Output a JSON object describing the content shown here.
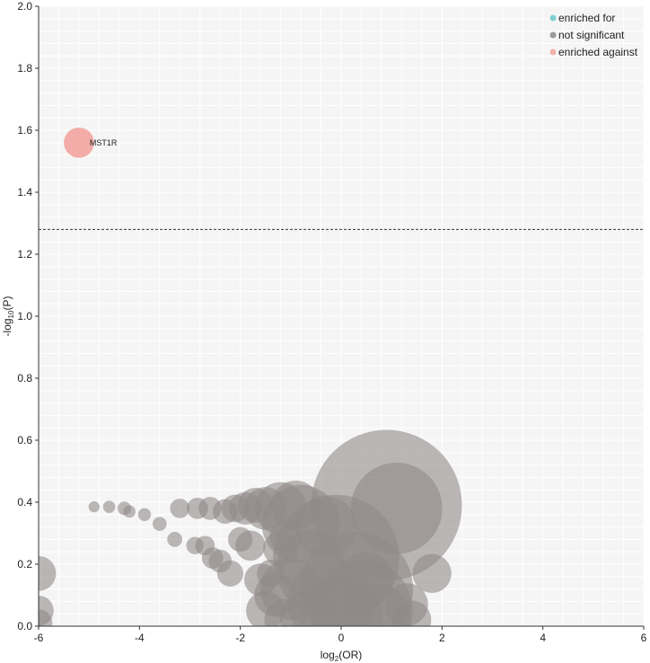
{
  "chart_data": {
    "type": "scatter",
    "title": "",
    "xlabel": {
      "base": "log",
      "sub": "2",
      "rest": "(OR)"
    },
    "ylabel": {
      "pre": "-log",
      "sub": "10",
      "rest": "(P)"
    },
    "xlim": [
      -6,
      6
    ],
    "ylim": [
      0,
      2
    ],
    "x_ticks": [
      -6,
      -4,
      -2,
      0,
      2,
      4,
      6
    ],
    "y_ticks": [
      0.0,
      0.2,
      0.4,
      0.6,
      0.8,
      1.0,
      1.2,
      1.4,
      1.6,
      1.8,
      2.0
    ],
    "x_tick_labels": [
      "-6",
      "-4",
      "-2",
      "0",
      "2",
      "4",
      "6"
    ],
    "y_tick_labels": [
      "0.0",
      "0.2",
      "0.4",
      "0.6",
      "0.8",
      "1.0",
      "1.2",
      "1.4",
      "1.6",
      "1.8",
      "2.0"
    ],
    "grid": true,
    "threshold_line": {
      "y": 1.28,
      "style": "dashed"
    },
    "legend": {
      "placement": "top-right",
      "entries": [
        {
          "label": "enriched for",
          "color": "#7fd0d3"
        },
        {
          "label": "not significant",
          "color": "#9e9a98"
        },
        {
          "label": "enriched against",
          "color": "#f2b3ad"
        }
      ]
    },
    "colors": {
      "enriched_for": "#7fd0d3",
      "not_significant": "#8f8b89",
      "enriched_against": "#f2a8a2",
      "background": "#f5f5f5",
      "grid": "#ffffff"
    },
    "annotations": [
      {
        "text": "MST1R",
        "x": -5.2,
        "y": 1.56
      }
    ],
    "points": [
      {
        "x": -5.2,
        "y": 1.56,
        "size": 0.06,
        "category": "enriched_against",
        "label": "MST1R"
      },
      {
        "x": 0.9,
        "y": 0.39,
        "size": 1.5,
        "category": "not_significant"
      },
      {
        "x": -0.1,
        "y": 0.22,
        "size": 1.05,
        "category": "not_significant"
      },
      {
        "x": 0.3,
        "y": 0.12,
        "size": 0.85,
        "category": "not_significant"
      },
      {
        "x": 0.4,
        "y": 0.05,
        "size": 0.7,
        "category": "not_significant"
      },
      {
        "x": 1.1,
        "y": 0.38,
        "size": 0.55,
        "category": "not_significant"
      },
      {
        "x": -0.8,
        "y": 0.33,
        "size": 0.4,
        "category": "not_significant"
      },
      {
        "x": -0.2,
        "y": 0.08,
        "size": 0.5,
        "category": "not_significant"
      },
      {
        "x": 0.0,
        "y": 0.03,
        "size": 0.45,
        "category": "not_significant"
      },
      {
        "x": -1.2,
        "y": 0.38,
        "size": 0.18,
        "category": "not_significant"
      },
      {
        "x": -0.9,
        "y": 0.39,
        "size": 0.16,
        "category": "not_significant"
      },
      {
        "x": -1.5,
        "y": 0.38,
        "size": 0.12,
        "category": "not_significant"
      },
      {
        "x": -1.7,
        "y": 0.39,
        "size": 0.08,
        "category": "not_significant"
      },
      {
        "x": -1.9,
        "y": 0.38,
        "size": 0.07,
        "category": "not_significant"
      },
      {
        "x": -2.1,
        "y": 0.38,
        "size": 0.05,
        "category": "not_significant"
      },
      {
        "x": -2.3,
        "y": 0.37,
        "size": 0.04,
        "category": "not_significant"
      },
      {
        "x": -0.6,
        "y": 0.2,
        "size": 0.3,
        "category": "not_significant"
      },
      {
        "x": -1.0,
        "y": 0.12,
        "size": 0.25,
        "category": "not_significant"
      },
      {
        "x": -1.3,
        "y": 0.1,
        "size": 0.12,
        "category": "not_significant"
      },
      {
        "x": -1.6,
        "y": 0.15,
        "size": 0.07,
        "category": "not_significant"
      },
      {
        "x": -1.4,
        "y": 0.17,
        "size": 0.05,
        "category": "not_significant"
      },
      {
        "x": -1.8,
        "y": 0.26,
        "size": 0.06,
        "category": "not_significant"
      },
      {
        "x": -2.0,
        "y": 0.28,
        "size": 0.04,
        "category": "not_significant"
      },
      {
        "x": -1.2,
        "y": 0.25,
        "size": 0.08,
        "category": "not_significant"
      },
      {
        "x": -1.1,
        "y": 0.29,
        "size": 0.07,
        "category": "not_significant"
      },
      {
        "x": -1.5,
        "y": 0.05,
        "size": 0.1,
        "category": "not_significant"
      },
      {
        "x": -1.1,
        "y": 0.02,
        "size": 0.12,
        "category": "not_significant"
      },
      {
        "x": -0.6,
        "y": 0.02,
        "size": 0.25,
        "category": "not_significant"
      },
      {
        "x": 0.7,
        "y": 0.03,
        "size": 0.3,
        "category": "not_significant"
      },
      {
        "x": 1.3,
        "y": 0.07,
        "size": 0.12,
        "category": "not_significant"
      },
      {
        "x": 1.4,
        "y": 0.02,
        "size": 0.1,
        "category": "not_significant"
      },
      {
        "x": 1.8,
        "y": 0.17,
        "size": 0.1,
        "category": "not_significant"
      },
      {
        "x": 0.5,
        "y": 0.15,
        "size": 0.2,
        "category": "not_significant"
      },
      {
        "x": -0.3,
        "y": 0.32,
        "size": 0.25,
        "category": "not_significant"
      },
      {
        "x": -2.2,
        "y": 0.17,
        "size": 0.045,
        "category": "not_significant"
      },
      {
        "x": -2.4,
        "y": 0.21,
        "size": 0.035,
        "category": "not_significant"
      },
      {
        "x": -2.55,
        "y": 0.22,
        "size": 0.03,
        "category": "not_significant"
      },
      {
        "x": -2.7,
        "y": 0.26,
        "size": 0.025,
        "category": "not_significant"
      },
      {
        "x": -2.9,
        "y": 0.26,
        "size": 0.02,
        "category": "not_significant"
      },
      {
        "x": -3.3,
        "y": 0.28,
        "size": 0.015,
        "category": "not_significant"
      },
      {
        "x": -3.6,
        "y": 0.33,
        "size": 0.013,
        "category": "not_significant"
      },
      {
        "x": -3.9,
        "y": 0.36,
        "size": 0.011,
        "category": "not_significant"
      },
      {
        "x": -4.2,
        "y": 0.37,
        "size": 0.01,
        "category": "not_significant"
      },
      {
        "x": -2.6,
        "y": 0.38,
        "size": 0.035,
        "category": "not_significant"
      },
      {
        "x": -2.85,
        "y": 0.38,
        "size": 0.03,
        "category": "not_significant"
      },
      {
        "x": -3.2,
        "y": 0.38,
        "size": 0.025,
        "category": "not_significant"
      },
      {
        "x": -4.3,
        "y": 0.38,
        "size": 0.012,
        "category": "not_significant"
      },
      {
        "x": -4.6,
        "y": 0.385,
        "size": 0.01,
        "category": "not_significant"
      },
      {
        "x": -4.9,
        "y": 0.385,
        "size": 0.008,
        "category": "not_significant"
      },
      {
        "x": -6.0,
        "y": 0.17,
        "size": 0.08,
        "category": "not_significant"
      },
      {
        "x": -6.0,
        "y": 0.05,
        "size": 0.06,
        "category": "not_significant"
      },
      {
        "x": -6.0,
        "y": 0.01,
        "size": 0.05,
        "category": "not_significant"
      }
    ]
  }
}
